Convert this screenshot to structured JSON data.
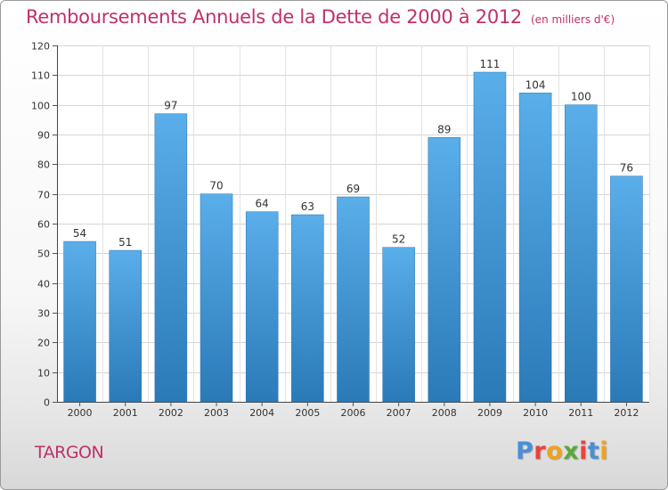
{
  "header": {
    "title": "Remboursements Annuels de la Dette de 2000 à 2012",
    "subtitle": "(en milliers d'€)"
  },
  "footer": {
    "commune": "TARGON",
    "brand": "Proxiti"
  },
  "colors": {
    "accent": "#c0306b",
    "bar_top": "#5aaeea",
    "bar_bottom": "#2a7ab8"
  },
  "chart_data": {
    "type": "bar",
    "title": "Remboursements Annuels de la Dette de 2000 à 2012",
    "subtitle": "(en milliers d'€)",
    "xlabel": "",
    "ylabel": "",
    "categories": [
      "2000",
      "2001",
      "2002",
      "2003",
      "2004",
      "2005",
      "2006",
      "2007",
      "2008",
      "2009",
      "2010",
      "2011",
      "2012"
    ],
    "values": [
      54,
      51,
      97,
      70,
      64,
      63,
      69,
      52,
      89,
      111,
      104,
      100,
      76
    ],
    "ylim": [
      0,
      120
    ],
    "yticks": [
      0,
      10,
      20,
      30,
      40,
      50,
      60,
      70,
      80,
      90,
      100,
      110,
      120
    ],
    "grid": true,
    "data_labels": true
  }
}
